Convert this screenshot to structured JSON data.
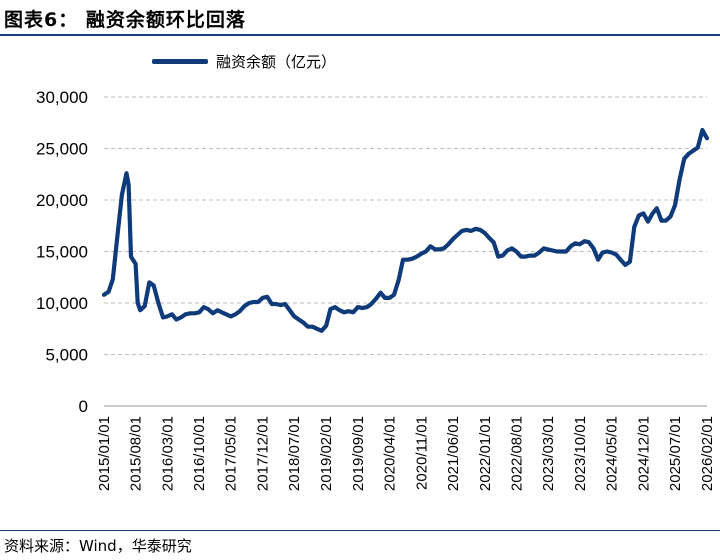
{
  "figure": {
    "title": "图表6：  融资余额环比回落",
    "source": "资料来源：Wind，华泰研究"
  },
  "colors": {
    "line": "#0f3b7a",
    "rule": "#1a3d7c"
  },
  "chart_data": {
    "type": "line",
    "series": [
      {
        "name": "融资余额（亿元）",
        "points": [
          [
            "2015-01-01",
            10800
          ],
          [
            "2015-02-01",
            11100
          ],
          [
            "2015-03-01",
            12300
          ],
          [
            "2015-04-01",
            16500
          ],
          [
            "2015-05-01",
            20500
          ],
          [
            "2015-06-01",
            22600
          ],
          [
            "2015-06-15",
            21500
          ],
          [
            "2015-07-01",
            14500
          ],
          [
            "2015-08-01",
            13800
          ],
          [
            "2015-08-15",
            10000
          ],
          [
            "2015-09-01",
            9300
          ],
          [
            "2015-10-01",
            9700
          ],
          [
            "2015-11-01",
            12000
          ],
          [
            "2015-12-01",
            11700
          ],
          [
            "2016-01-01",
            10000
          ],
          [
            "2016-02-01",
            8600
          ],
          [
            "2016-03-01",
            8700
          ],
          [
            "2016-04-01",
            8900
          ],
          [
            "2016-05-01",
            8400
          ],
          [
            "2016-06-01",
            8600
          ],
          [
            "2016-07-01",
            8900
          ],
          [
            "2016-08-01",
            9000
          ],
          [
            "2016-09-01",
            9000
          ],
          [
            "2016-10-01",
            9100
          ],
          [
            "2016-11-01",
            9600
          ],
          [
            "2016-12-01",
            9400
          ],
          [
            "2017-01-01",
            9000
          ],
          [
            "2017-02-01",
            9300
          ],
          [
            "2017-03-01",
            9100
          ],
          [
            "2017-04-01",
            8900
          ],
          [
            "2017-05-01",
            8700
          ],
          [
            "2017-06-01",
            8900
          ],
          [
            "2017-07-01",
            9200
          ],
          [
            "2017-08-01",
            9700
          ],
          [
            "2017-09-01",
            10000
          ],
          [
            "2017-10-01",
            10100
          ],
          [
            "2017-11-01",
            10100
          ],
          [
            "2017-12-01",
            10500
          ],
          [
            "2018-01-01",
            10600
          ],
          [
            "2018-02-01",
            9900
          ],
          [
            "2018-03-01",
            9900
          ],
          [
            "2018-04-01",
            9800
          ],
          [
            "2018-05-01",
            9900
          ],
          [
            "2018-06-01",
            9300
          ],
          [
            "2018-07-01",
            8700
          ],
          [
            "2018-08-01",
            8400
          ],
          [
            "2018-09-01",
            8100
          ],
          [
            "2018-10-01",
            7700
          ],
          [
            "2018-11-01",
            7700
          ],
          [
            "2018-12-01",
            7500
          ],
          [
            "2019-01-01",
            7300
          ],
          [
            "2019-02-01",
            7800
          ],
          [
            "2019-03-01",
            9400
          ],
          [
            "2019-04-01",
            9600
          ],
          [
            "2019-05-01",
            9300
          ],
          [
            "2019-06-01",
            9100
          ],
          [
            "2019-07-01",
            9200
          ],
          [
            "2019-08-01",
            9100
          ],
          [
            "2019-09-01",
            9600
          ],
          [
            "2019-10-01",
            9500
          ],
          [
            "2019-11-01",
            9600
          ],
          [
            "2019-12-01",
            9900
          ],
          [
            "2020-01-01",
            10400
          ],
          [
            "2020-02-01",
            11000
          ],
          [
            "2020-03-01",
            10500
          ],
          [
            "2020-04-01",
            10500
          ],
          [
            "2020-05-01",
            10800
          ],
          [
            "2020-06-01",
            12200
          ],
          [
            "2020-07-01",
            14200
          ],
          [
            "2020-08-01",
            14200
          ],
          [
            "2020-09-01",
            14300
          ],
          [
            "2020-10-01",
            14500
          ],
          [
            "2020-11-01",
            14800
          ],
          [
            "2020-12-01",
            15000
          ],
          [
            "2021-01-01",
            15500
          ],
          [
            "2021-02-01",
            15200
          ],
          [
            "2021-03-01",
            15200
          ],
          [
            "2021-04-01",
            15300
          ],
          [
            "2021-05-01",
            15700
          ],
          [
            "2021-06-01",
            16200
          ],
          [
            "2021-07-01",
            16600
          ],
          [
            "2021-08-01",
            17000
          ],
          [
            "2021-09-01",
            17100
          ],
          [
            "2021-10-01",
            17000
          ],
          [
            "2021-11-01",
            17200
          ],
          [
            "2021-12-01",
            17100
          ],
          [
            "2022-01-01",
            16800
          ],
          [
            "2022-02-01",
            16300
          ],
          [
            "2022-03-01",
            15900
          ],
          [
            "2022-04-01",
            14500
          ],
          [
            "2022-05-01",
            14600
          ],
          [
            "2022-06-01",
            15100
          ],
          [
            "2022-07-01",
            15300
          ],
          [
            "2022-08-01",
            15000
          ],
          [
            "2022-09-01",
            14500
          ],
          [
            "2022-10-01",
            14500
          ],
          [
            "2022-11-01",
            14600
          ],
          [
            "2022-12-01",
            14600
          ],
          [
            "2023-01-01",
            14900
          ],
          [
            "2023-02-01",
            15300
          ],
          [
            "2023-03-01",
            15200
          ],
          [
            "2023-04-01",
            15100
          ],
          [
            "2023-05-01",
            15000
          ],
          [
            "2023-06-01",
            15000
          ],
          [
            "2023-07-01",
            15000
          ],
          [
            "2023-08-01",
            15500
          ],
          [
            "2023-09-01",
            15800
          ],
          [
            "2023-10-01",
            15700
          ],
          [
            "2023-11-01",
            16000
          ],
          [
            "2023-12-01",
            15900
          ],
          [
            "2024-01-01",
            15300
          ],
          [
            "2024-02-01",
            14200
          ],
          [
            "2024-03-01",
            14900
          ],
          [
            "2024-04-01",
            15000
          ],
          [
            "2024-05-01",
            14900
          ],
          [
            "2024-06-01",
            14700
          ],
          [
            "2024-07-01",
            14200
          ],
          [
            "2024-08-01",
            13700
          ],
          [
            "2024-09-01",
            14000
          ],
          [
            "2024-10-01",
            17400
          ],
          [
            "2024-11-01",
            18500
          ],
          [
            "2024-12-01",
            18700
          ],
          [
            "2025-01-01",
            17900
          ],
          [
            "2025-02-01",
            18700
          ],
          [
            "2025-03-01",
            19200
          ],
          [
            "2025-04-01",
            18000
          ],
          [
            "2025-05-01",
            18000
          ],
          [
            "2025-06-01",
            18400
          ],
          [
            "2025-07-01",
            19500
          ],
          [
            "2025-08-01",
            22000
          ],
          [
            "2025-09-01",
            24000
          ],
          [
            "2025-10-01",
            24500
          ],
          [
            "2025-11-01",
            24800
          ],
          [
            "2025-12-01",
            25100
          ],
          [
            "2026-01-01",
            26800
          ],
          [
            "2026-01-15",
            26400
          ],
          [
            "2026-02-01",
            26000
          ]
        ]
      }
    ],
    "x_tick_labels": [
      "2015/01/01",
      "2015/08/01",
      "2016/03/01",
      "2016/10/01",
      "2017/05/01",
      "2017/12/01",
      "2018/07/01",
      "2019/02/01",
      "2019/09/01",
      "2020/04/01",
      "2020/11/01",
      "2021/06/01",
      "2022/01/01",
      "2022/08/01",
      "2023/03/01",
      "2023/10/01",
      "2024/05/01",
      "2024/12/01",
      "2025/07/01",
      "2026/02/01"
    ],
    "y_tick_labels": [
      "0",
      "5,000",
      "10,000",
      "15,000",
      "20,000",
      "25,000",
      "30,000"
    ],
    "ylim": [
      0,
      30000
    ],
    "xlim": [
      "2015-01-01",
      "2026-02-01"
    ],
    "grid": "y-dashed",
    "legend": "top-left"
  }
}
